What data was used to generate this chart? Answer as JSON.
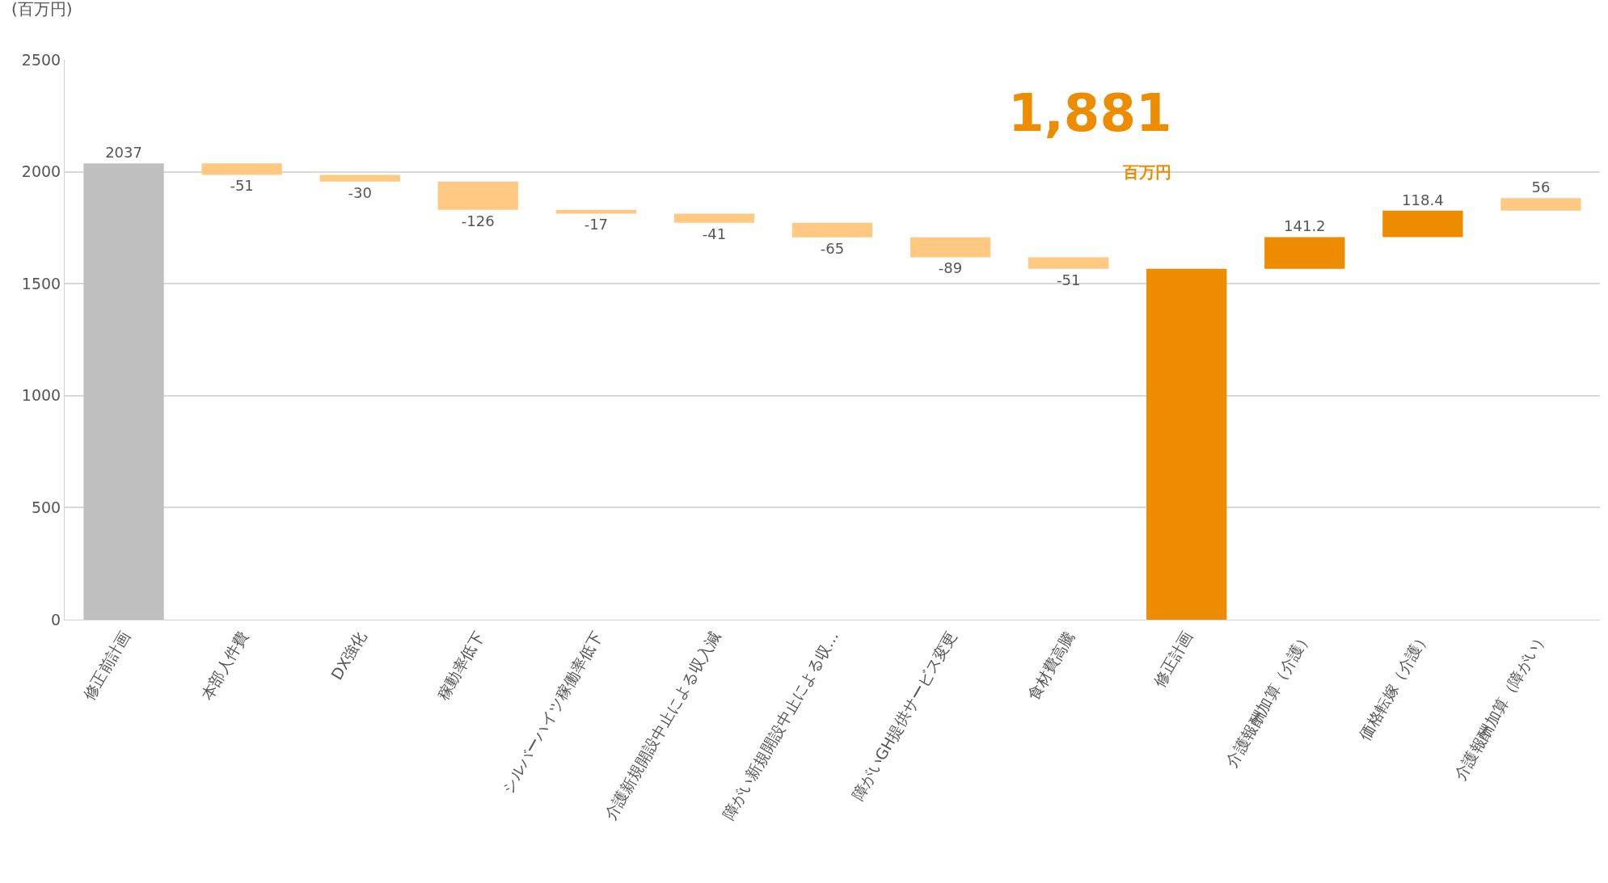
{
  "chart_data": {
    "type": "bar",
    "ylabel": "(百万円)",
    "categories": [
      "修正前計画",
      "本部人件費",
      "DX強化",
      "稼動率低下",
      "シルバーハイツ稼働率低下",
      "介護新規開設中止による収入減",
      "障がい新規開設中止による収…",
      "障がいGH提供サービス変更",
      "食材費高騰",
      "修正計画",
      "介護報酬加算（介護）",
      "価格転嫁（介護）",
      "介護報酬加算（障がい）"
    ],
    "values": [
      2037,
      -51,
      -30,
      -126,
      -17,
      -41,
      -65,
      -89,
      -51,
      1567,
      141.2,
      118.4,
      56
    ],
    "base": [
      0,
      2037,
      1986,
      1956,
      1830,
      1813,
      1772,
      1707,
      1618,
      0,
      1567,
      1708.2,
      1826.6
    ],
    "colors": [
      "#bfbfbf",
      "#ffc983",
      "#ffc983",
      "#ffc983",
      "#ffc983",
      "#ffc983",
      "#ffc983",
      "#ffc983",
      "#ffc983",
      "#ee8c00",
      "#ee8c00",
      "#ee8c00",
      "#ffc983"
    ],
    "value_labels": [
      "2037",
      "-51",
      "-30",
      "-126",
      "-17",
      "-41",
      "-65",
      "-89",
      "-51",
      null,
      "141.2",
      "118.4",
      "56"
    ],
    "annotations": [
      "1,881",
      "百万円"
    ],
    "ylim": [
      0,
      2500
    ],
    "yticks": [
      0,
      500,
      1000,
      1500,
      2000,
      2500
    ],
    "grid": "y"
  }
}
